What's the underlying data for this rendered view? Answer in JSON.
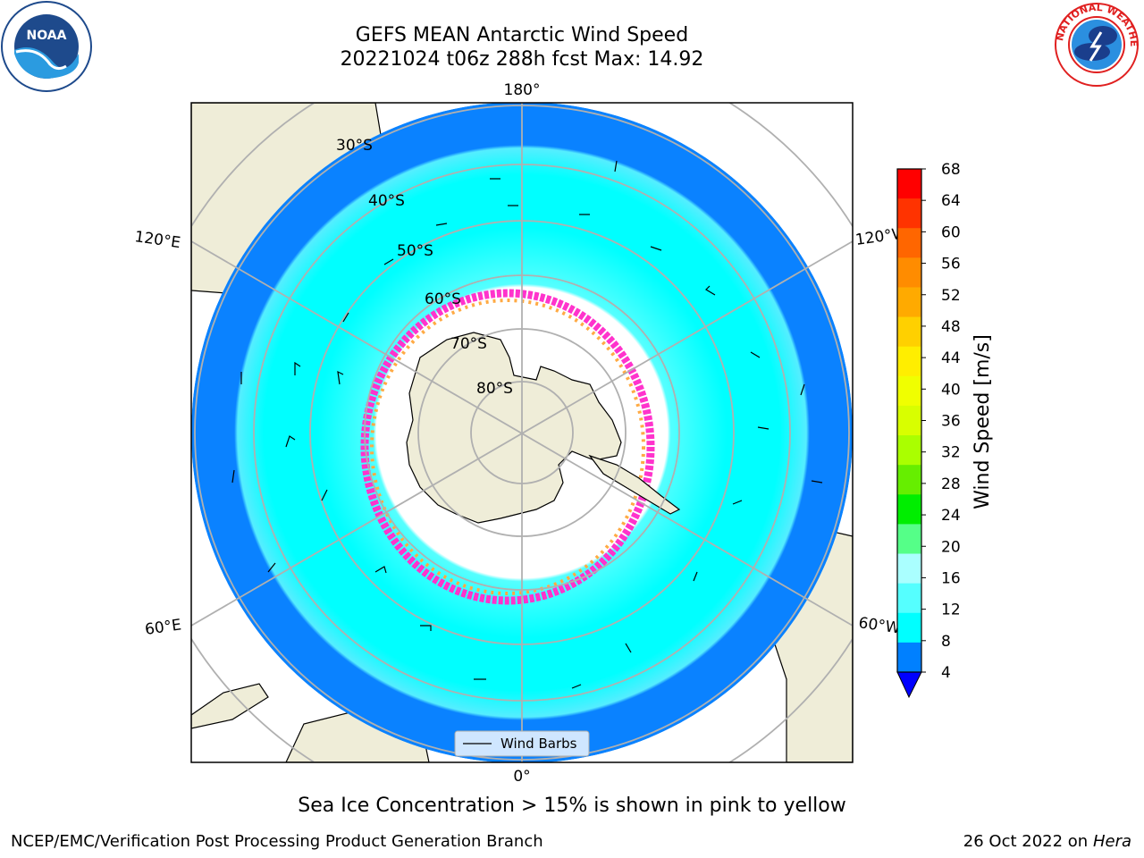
{
  "header": {
    "title_line1": "GEFS MEAN Antarctic Wind Speed",
    "title_line2": "20221024 t06z 288h fcst   Max: 14.92"
  },
  "logos": {
    "left": "noaa-logo",
    "right": "national-weather-service-logo",
    "nws_ring_text": "NATIONAL WEATHER SERVICE"
  },
  "map": {
    "projection": "south-polar-stereographic",
    "longitude_labels": {
      "top": "180°",
      "bottom": "0°",
      "upper_left": "120°E",
      "upper_right": "120°W",
      "lower_left": "60°E",
      "lower_right": "60°W"
    },
    "latitude_labels": [
      "30°S",
      "40°S",
      "50°S",
      "60°S",
      "70°S",
      "80°S"
    ],
    "legend_label": "Wind Barbs"
  },
  "colorbar": {
    "label": "Wind Speed [m/s]",
    "ticks": [
      "68",
      "64",
      "60",
      "56",
      "52",
      "48",
      "44",
      "40",
      "36",
      "32",
      "28",
      "24",
      "20",
      "16",
      "12",
      "8",
      "4"
    ],
    "colors_top_to_bottom": [
      "#ff0000",
      "#ff3300",
      "#ff6600",
      "#ff8c00",
      "#ffaa00",
      "#ffd000",
      "#ffee00",
      "#f0ff00",
      "#d8ff00",
      "#aaff00",
      "#66ee00",
      "#00ee00",
      "#55ff88",
      "#aaffff",
      "#55ffff",
      "#00ffff",
      "#0080ff"
    ],
    "extend_color": "#0000ff"
  },
  "colors": {
    "ocean_low": "#0a82ff",
    "ocean_mid": "#00ffff",
    "ocean_high": "#55ffff",
    "land": "#efedd8",
    "sea_ice_edge": "#ff33cc",
    "sea_ice_orange": "#ffaa44"
  },
  "caption": "Sea Ice Concentration > 15% is shown in pink to yellow",
  "footer": {
    "left": "NCEP/EMC/Verification Post Processing Product Generation Branch",
    "right_prefix": "26 Oct 2022 on ",
    "right_machine": "Hera"
  }
}
